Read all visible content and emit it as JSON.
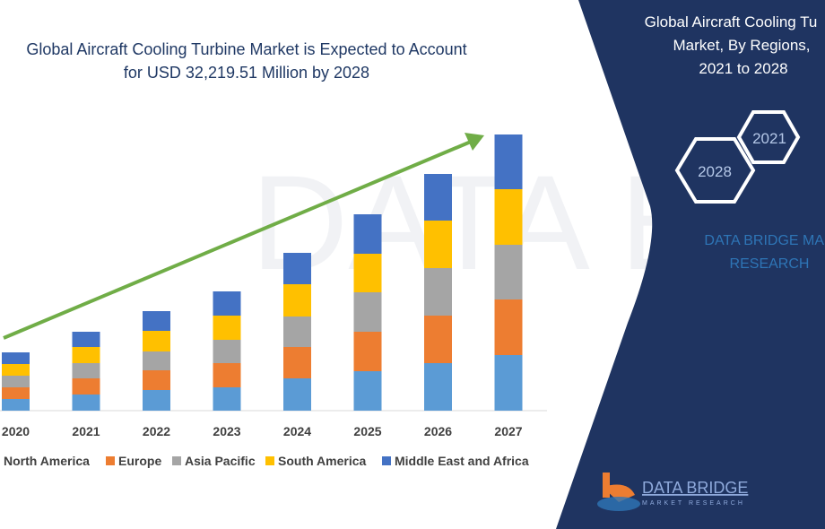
{
  "chart_data": {
    "type": "bar",
    "stacked": true,
    "title": "Global Aircraft Cooling Turbine Market is Expected to Account for USD 32,219.51 Million by 2028",
    "title_lines": [
      "Global Aircraft Cooling Turbine Market is Expected to Account",
      "for USD 32,219.51 Million by 2028"
    ],
    "categories": [
      "2020",
      "2021",
      "2022",
      "2023",
      "2024",
      "2025",
      "2026",
      "2027"
    ],
    "series": [
      {
        "name": "North America",
        "color": "#5b9bd5",
        "values": [
          13,
          18,
          23,
          26,
          36,
          44,
          53,
          62
        ]
      },
      {
        "name": "Europe",
        "color": "#ed7d31",
        "values": [
          13,
          18,
          22,
          27,
          35,
          44,
          53,
          62
        ]
      },
      {
        "name": "Asia Pacific",
        "color": "#a5a5a5",
        "values": [
          13,
          17,
          21,
          26,
          34,
          44,
          53,
          61
        ]
      },
      {
        "name": "South America",
        "color": "#ffc000",
        "values": [
          13,
          18,
          23,
          27,
          36,
          43,
          53,
          62
        ]
      },
      {
        "name": "Middle East and Africa",
        "color": "#4472c4",
        "values": [
          13,
          17,
          22,
          27,
          35,
          44,
          52,
          61
        ]
      }
    ],
    "value_units": "relative (no value axis shown)",
    "ylim": [
      0,
      310
    ],
    "legend_position": "bottom",
    "grid": false,
    "trend_arrow_color": "#70ad47"
  },
  "side_panel": {
    "title_lines": [
      "Global Aircraft Cooling Tu",
      "Market, By Regions,",
      "2021 to 2028"
    ],
    "hex_years": [
      "2021",
      "2028"
    ],
    "brand_lines": [
      "DATA BRIDGE MAR",
      "RESEARCH"
    ],
    "background": "#1f3461"
  },
  "logo": {
    "name": "DATA BRIDGE",
    "tagline": "MARKET RESEARCH"
  }
}
